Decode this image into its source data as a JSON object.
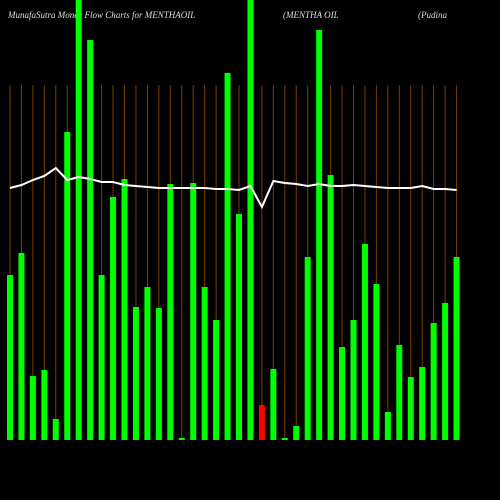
{
  "chart_data": {
    "type": "bar",
    "title": "MunafaSutra  Money Flow  Charts for MENTHAOIL",
    "subtitle": "(MENTHA OIL",
    "note": "(Pudina",
    "categories": [
      null,
      null,
      null,
      null,
      null,
      null,
      null,
      null,
      null,
      null,
      null,
      null,
      null,
      null,
      null,
      null,
      null,
      null,
      null,
      null,
      null,
      null,
      null,
      null,
      null,
      null,
      null,
      null,
      null,
      null,
      null,
      null,
      null,
      null,
      null,
      null,
      null,
      null,
      null,
      null
    ],
    "values": [
      165,
      187,
      64,
      70,
      21,
      308,
      460,
      400,
      165,
      243,
      261,
      133,
      153,
      132,
      256,
      2,
      257,
      153,
      120,
      367,
      226,
      460,
      35,
      71,
      2,
      14,
      183,
      410,
      265,
      93,
      120,
      196,
      156,
      28,
      95,
      63,
      73,
      117,
      137,
      183
    ],
    "colors": [
      "#00ff00",
      "#00ff00",
      "#00ff00",
      "#00ff00",
      "#00ff00",
      "#00ff00",
      "#00ff00",
      "#00ff00",
      "#00ff00",
      "#00ff00",
      "#00ff00",
      "#00ff00",
      "#00ff00",
      "#00ff00",
      "#00ff00",
      "#00ff00",
      "#00ff00",
      "#00ff00",
      "#00ff00",
      "#00ff00",
      "#00ff00",
      "#00ff00",
      "#ff0000",
      "#00ff00",
      "#00ff00",
      "#00ff00",
      "#00ff00",
      "#00ff00",
      "#00ff00",
      "#00ff00",
      "#00ff00",
      "#00ff00",
      "#00ff00",
      "#00ff00",
      "#00ff00",
      "#00ff00",
      "#00ff00",
      "#00ff00",
      "#00ff00",
      "#00ff00"
    ],
    "line": {
      "color": "#ffffff",
      "values": [
        252,
        255,
        260,
        264,
        272,
        260,
        263,
        261,
        258,
        258,
        255,
        254,
        253,
        252,
        252,
        252,
        252,
        252,
        251,
        251,
        250,
        254,
        233,
        259,
        257,
        256,
        254,
        256,
        254,
        254,
        255,
        254,
        253,
        252,
        252,
        252,
        254,
        251,
        251,
        250
      ]
    },
    "ylim": [
      0,
      440
    ]
  }
}
